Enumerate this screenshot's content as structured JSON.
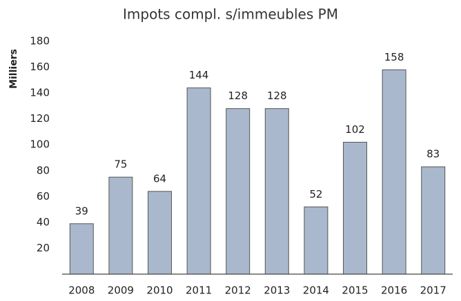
{
  "chart_data": {
    "type": "bar",
    "title": "Impots compl. s/immeubles PM",
    "y_label": "Milliers",
    "categories": [
      "2008",
      "2009",
      "2010",
      "2011",
      "2012",
      "2013",
      "2014",
      "2015",
      "2016",
      "2017"
    ],
    "values": [
      39,
      75,
      64,
      144,
      128,
      128,
      52,
      102,
      158,
      83
    ],
    "color": "#a9b8cc",
    "ylim": [
      0,
      180
    ],
    "yticks": [
      20,
      40,
      60,
      80,
      100,
      120,
      140,
      160,
      180
    ],
    "grid": false
  }
}
